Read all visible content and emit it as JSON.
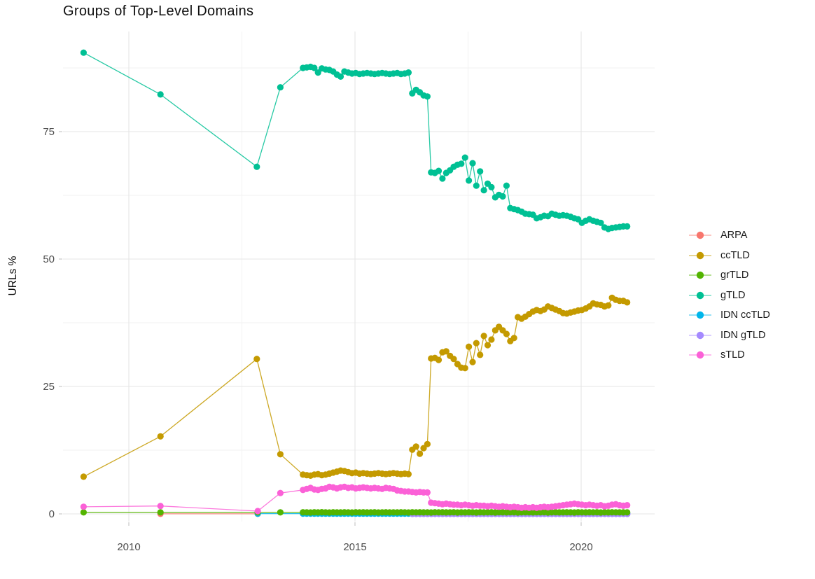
{
  "title": "Groups of Top-Level Domains",
  "axes": {
    "y_label": "URLs %",
    "y_tick_labels": [
      "0",
      "25",
      "50",
      "75"
    ],
    "x_tick_labels": [
      "2010",
      "2015",
      "2020"
    ]
  },
  "legend": {
    "items": [
      {
        "label": "ARPA",
        "color": "#F8766D"
      },
      {
        "label": "ccTLD",
        "color": "#C49A00"
      },
      {
        "label": "grTLD",
        "color": "#53B400"
      },
      {
        "label": "gTLD",
        "color": "#00C094"
      },
      {
        "label": "IDN ccTLD",
        "color": "#00B6EB"
      },
      {
        "label": "IDN gTLD",
        "color": "#A58AFF"
      },
      {
        "label": "sTLD",
        "color": "#FB61D7"
      }
    ]
  },
  "colors": {
    "grid_major": "#e5e5e5",
    "grid_minor": "#f2f2f2",
    "tick_mark": "#c9c9c9",
    "tick_label": "#4d4d4d",
    "background": "#ffffff"
  },
  "chart_data": {
    "type": "line",
    "title": "Groups of Top-Level Domains",
    "xlabel": "",
    "ylabel": "URLs %",
    "xlim": [
      2008.4,
      2021.6
    ],
    "ylim": [
      -1.5,
      94.8
    ],
    "x_ticks": [
      2010,
      2015,
      2020
    ],
    "x_minor_ticks": [
      2012.5,
      2017.5
    ],
    "y_ticks": [
      0,
      25,
      50,
      75
    ],
    "y_minor_ticks": [
      12.5,
      37.5,
      62.5,
      87.5
    ],
    "grid": true,
    "legend_position": "right",
    "series": [
      {
        "name": "ARPA",
        "color": "#F8766D",
        "sparse": [
          [
            2010.7,
            0.02
          ],
          [
            2012.85,
            0.02
          ]
        ]
      },
      {
        "name": "IDN ccTLD",
        "color": "#00B6EB",
        "sparse": [
          [
            2012.85,
            0.05
          ]
        ],
        "monthly_start": 2013.85,
        "monthly_end": 2021.02,
        "monthly_value": 0.05
      },
      {
        "name": "IDN gTLD",
        "color": "#A58AFF",
        "sparse": [],
        "monthly_start": 2016.27,
        "monthly_end": 2021.02,
        "monthly_value": 0.0
      },
      {
        "name": "grTLD",
        "color": "#53B400",
        "sparse": [
          [
            2009.0,
            0.3
          ],
          [
            2010.7,
            0.3
          ],
          [
            2012.85,
            0.3
          ],
          [
            2013.35,
            0.3
          ]
        ],
        "monthly_start": 2013.85,
        "monthly_values": [
          0.32,
          0.3,
          0.28,
          0.31,
          0.29,
          0.33,
          0.3,
          0.27,
          0.31,
          0.3,
          0.29,
          0.32,
          0.3,
          0.28,
          0.32,
          0.3,
          0.31,
          0.29,
          0.3,
          0.32,
          0.28,
          0.3,
          0.31,
          0.29,
          0.3,
          0.29,
          0.31,
          0.3,
          0.28,
          0.32,
          0.3,
          0.31,
          0.29,
          0.3,
          0.28,
          0.31,
          0.3,
          0.32,
          0.29,
          0.3,
          0.31,
          0.28,
          0.3,
          0.29,
          0.32,
          0.3,
          0.28,
          0.31,
          0.29,
          0.3,
          0.31,
          0.28,
          0.32,
          0.3,
          0.29,
          0.31,
          0.3,
          0.28,
          0.3,
          0.32,
          0.3,
          0.29,
          0.31,
          0.3,
          0.32,
          0.28,
          0.3,
          0.31,
          0.29,
          0.3,
          0.32,
          0.3,
          0.28,
          0.31,
          0.3,
          0.29,
          0.32,
          0.3,
          0.31,
          0.28,
          0.3,
          0.29,
          0.31,
          0.3,
          0.3,
          0.29,
          0.3
        ]
      },
      {
        "name": "sTLD",
        "color": "#FB61D7",
        "sparse": [
          [
            2009.0,
            1.4
          ],
          [
            2010.7,
            1.55
          ],
          [
            2012.85,
            0.55
          ],
          [
            2013.35,
            4.1
          ]
        ],
        "monthly_start": 2013.85,
        "monthly_values": [
          4.7,
          4.9,
          5.1,
          4.8,
          4.7,
          4.9,
          5.0,
          5.3,
          5.2,
          5.0,
          5.2,
          5.3,
          5.1,
          5.2,
          5.0,
          5.1,
          5.2,
          5.1,
          5.0,
          5.1,
          5.0,
          4.9,
          5.1,
          5.0,
          4.9,
          4.6,
          4.5,
          4.4,
          4.4,
          4.3,
          4.2,
          4.3,
          4.2,
          4.2,
          2.2,
          2.1,
          2.0,
          1.9,
          2.0,
          1.9,
          1.8,
          1.8,
          1.7,
          1.8,
          1.7,
          1.6,
          1.7,
          1.6,
          1.6,
          1.5,
          1.6,
          1.5,
          1.4,
          1.5,
          1.4,
          1.3,
          1.4,
          1.3,
          1.2,
          1.3,
          1.2,
          1.3,
          1.2,
          1.3,
          1.4,
          1.3,
          1.4,
          1.5,
          1.6,
          1.7,
          1.8,
          1.9,
          2.0,
          1.9,
          1.8,
          1.7,
          1.8,
          1.7,
          1.6,
          1.7,
          1.5,
          1.6,
          1.8,
          1.9,
          1.7,
          1.6,
          1.7
        ]
      },
      {
        "name": "ccTLD",
        "color": "#C49A00",
        "sparse": [
          [
            2009.0,
            7.3
          ],
          [
            2010.7,
            15.2
          ],
          [
            2012.83,
            30.4
          ],
          [
            2013.35,
            11.7
          ]
        ],
        "monthly_start": 2013.85,
        "monthly_values": [
          7.7,
          7.6,
          7.5,
          7.7,
          7.8,
          7.6,
          7.7,
          7.9,
          8.1,
          8.3,
          8.5,
          8.4,
          8.2,
          8.0,
          8.1,
          7.9,
          8.0,
          7.9,
          7.8,
          7.9,
          8.0,
          7.9,
          7.8,
          7.9,
          8.0,
          7.9,
          7.8,
          7.9,
          7.8,
          12.6,
          13.2,
          11.8,
          12.9,
          13.7,
          30.5,
          30.6,
          30.2,
          31.7,
          31.9,
          31.0,
          30.4,
          29.4,
          28.7,
          28.6,
          32.8,
          29.8,
          33.5,
          31.2,
          34.9,
          33.1,
          34.2,
          36.0,
          36.7,
          36.0,
          35.3,
          33.9,
          34.5,
          38.6,
          38.3,
          38.7,
          39.2,
          39.7,
          40.0,
          39.8,
          40.1,
          40.7,
          40.4,
          40.1,
          39.8,
          39.4,
          39.3,
          39.5,
          39.7,
          39.9,
          40.0,
          40.3,
          40.7,
          41.3,
          41.1,
          41.0,
          40.7,
          40.9,
          42.4,
          42.0,
          41.8,
          41.8,
          41.5
        ]
      },
      {
        "name": "gTLD",
        "color": "#00C094",
        "sparse": [
          [
            2009.0,
            90.5
          ],
          [
            2010.7,
            82.3
          ],
          [
            2012.83,
            68.1
          ],
          [
            2013.35,
            83.7
          ]
        ],
        "monthly_start": 2013.85,
        "monthly_values": [
          87.5,
          87.6,
          87.7,
          87.5,
          86.6,
          87.4,
          87.2,
          87.1,
          86.8,
          86.2,
          85.8,
          86.8,
          86.6,
          86.4,
          86.5,
          86.3,
          86.4,
          86.5,
          86.4,
          86.3,
          86.4,
          86.5,
          86.4,
          86.3,
          86.4,
          86.5,
          86.3,
          86.4,
          86.6,
          82.5,
          83.2,
          82.7,
          82.1,
          81.9,
          67.0,
          66.9,
          67.3,
          65.8,
          66.9,
          67.4,
          68.1,
          68.5,
          68.7,
          69.9,
          65.4,
          68.8,
          64.4,
          67.2,
          63.5,
          64.8,
          64.1,
          62.1,
          62.6,
          62.3,
          64.4,
          60.0,
          59.8,
          59.6,
          59.3,
          58.9,
          58.8,
          58.7,
          58.0,
          58.2,
          58.5,
          58.4,
          58.9,
          58.7,
          58.5,
          58.6,
          58.5,
          58.3,
          58.0,
          57.8,
          57.1,
          57.5,
          57.8,
          57.5,
          57.3,
          57.1,
          56.2,
          55.9,
          56.1,
          56.2,
          56.3,
          56.4,
          56.4
        ]
      }
    ]
  }
}
